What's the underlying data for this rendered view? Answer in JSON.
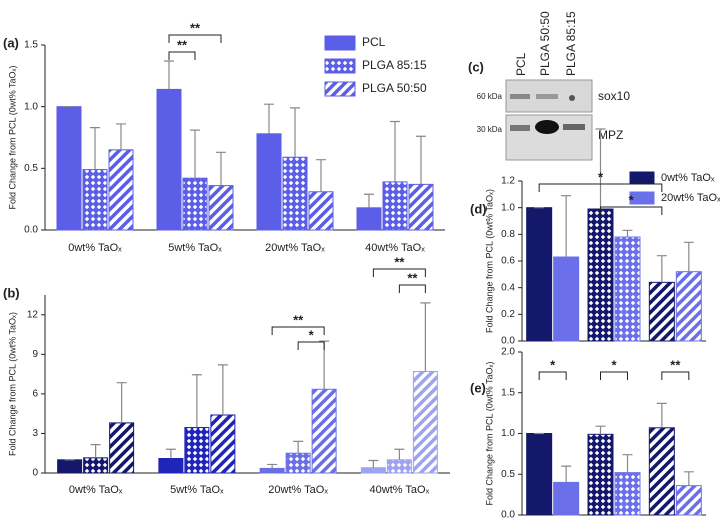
{
  "chart_data": [
    {
      "type": "bar",
      "panel_label": "(a)",
      "ylabel": "Fold Change from PCL (0wt% TaOₓ)",
      "categories": [
        "0wt% TaOₓ",
        "5wt% TaOₓ",
        "20wt% TaOₓ",
        "40wt% TaOₓ"
      ],
      "category_colors": [
        "#14186b",
        "#1f25b8",
        "#6b6fe6",
        "#9ea2f2"
      ],
      "series": [
        {
          "name": "PCL",
          "color": "#5b5ee6",
          "pattern": "solid",
          "values": [
            1.0,
            1.14,
            0.78,
            0.18
          ],
          "errors": [
            0,
            0.23,
            0.24,
            0.11
          ]
        },
        {
          "name": "PLGA 85:15",
          "color": "#5b5ee6",
          "pattern": "crosshatch",
          "values": [
            0.49,
            0.42,
            0.59,
            0.39
          ],
          "errors": [
            0.34,
            0.39,
            0.4,
            0.49
          ]
        },
        {
          "name": "PLGA 50:50",
          "color": "#5b5ee6",
          "pattern": "stripes",
          "values": [
            0.65,
            0.36,
            0.31,
            0.37
          ],
          "errors": [
            0.21,
            0.27,
            0.26,
            0.39
          ]
        }
      ],
      "ylim": [
        0,
        1.5
      ],
      "yticks": [
        {
          "value": 0,
          "label": "0.0"
        },
        0.5,
        {
          "value": 1,
          "label": "1.0"
        },
        1.5
      ],
      "annotations": [
        "**",
        "**"
      ],
      "legend": "top-right"
    },
    {
      "type": "bar",
      "panel_label": "(b)",
      "ylabel": "Fold Change from PCL (0wt% TaOₓ)",
      "categories": [
        "0wt% TaOₓ",
        "5wt% TaOₓ",
        "20wt% TaOₓ",
        "40wt% TaOₓ"
      ],
      "category_colors": [
        "#14186b",
        "#1f25b8",
        "#6b6fe6",
        "#9ea2f2"
      ],
      "series": [
        {
          "pattern": "solid",
          "values": [
            1.0,
            1.1,
            0.35,
            0.4
          ],
          "errors": [
            0,
            0.7,
            0.3,
            0.55
          ]
        },
        {
          "pattern": "crosshatch",
          "values": [
            1.15,
            3.45,
            1.5,
            1.0
          ],
          "errors": [
            1.0,
            4.0,
            0.9,
            0.8
          ]
        },
        {
          "pattern": "stripes",
          "values": [
            3.8,
            4.4,
            6.35,
            7.7
          ],
          "errors": [
            3.05,
            3.8,
            3.65,
            5.2
          ]
        }
      ],
      "ylim": [
        0,
        13.5
      ],
      "yticks": [
        0,
        3,
        6,
        9,
        12
      ],
      "annotations": [
        "**",
        "*",
        "**",
        "**"
      ]
    },
    {
      "type": "bar",
      "panel_label": "(d)",
      "ylabel": "Fold Change from PCL (0wt% TaOₓ)",
      "categories": [
        null,
        null,
        null
      ],
      "category_patterns": [
        "solid",
        "crosshatch",
        "stripes"
      ],
      "series": [
        {
          "name": "0wt% TaOₓ",
          "color": "#14186b",
          "values": [
            1.0,
            0.99,
            0.44
          ],
          "errors": [
            0,
            0.6,
            0.2
          ]
        },
        {
          "name": "20wt% TaOₓ",
          "color": "#6b70ea",
          "values": [
            0.63,
            0.78,
            0.52
          ],
          "errors": [
            0.46,
            0.05,
            0.22
          ]
        }
      ],
      "ylim": [
        0,
        1.2
      ],
      "yticks": [
        {
          "value": 0,
          "label": "0.0"
        },
        0.2,
        0.4,
        0.6,
        0.8,
        {
          "value": 1,
          "label": "1.0"
        },
        1.2
      ],
      "annotations": [
        "*",
        "*"
      ],
      "legend": "top-right"
    },
    {
      "type": "bar",
      "panel_label": "(e)",
      "ylabel": "Fold Change from PCL (0wt% TaOₓ)",
      "categories": [
        null,
        null,
        null
      ],
      "category_patterns": [
        "solid",
        "crosshatch",
        "stripes"
      ],
      "series": [
        {
          "color": "#14186b",
          "values": [
            1.0,
            0.99,
            1.07
          ],
          "errors": [
            0,
            0.1,
            0.3
          ]
        },
        {
          "color": "#6b70ea",
          "values": [
            0.4,
            0.52,
            0.36
          ],
          "errors": [
            0.2,
            0.22,
            0.17
          ]
        }
      ],
      "ylim": [
        0,
        2.0
      ],
      "yticks": [
        {
          "value": 0,
          "label": "0.0"
        },
        0.5,
        {
          "value": 1,
          "label": "1.0"
        },
        1.5,
        {
          "value": 2,
          "label": "2.0"
        }
      ],
      "annotations": [
        "*",
        "*",
        "**"
      ]
    }
  ],
  "blot": {
    "panel_label": "(c)",
    "lanes": [
      "PCL",
      "PLGA 50:50",
      "PLGA 85:15"
    ],
    "markers": [
      "60 kDa",
      "30 kDa"
    ],
    "proteins": [
      "sox10",
      "MPZ"
    ]
  }
}
